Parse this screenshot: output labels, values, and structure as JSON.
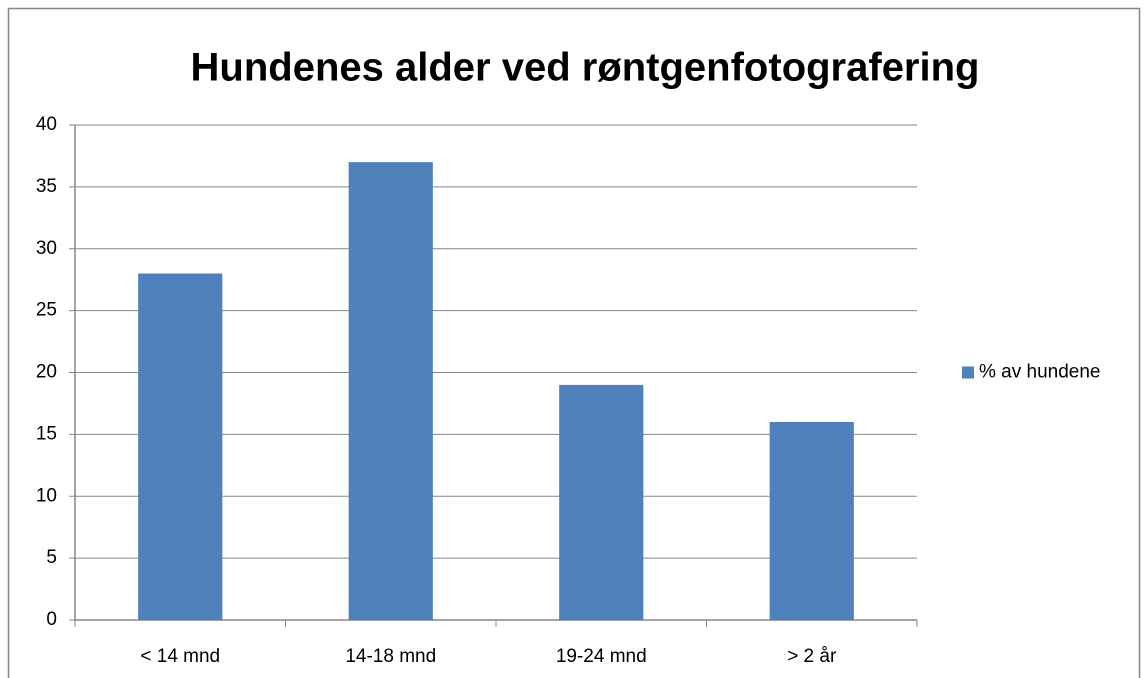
{
  "chart_data": {
    "type": "bar",
    "title": "Hundenes alder ved røntgenfotografering",
    "categories": [
      "< 14 mnd",
      "14-18 mnd",
      "19-24 mnd",
      "> 2 år"
    ],
    "series": [
      {
        "name": "% av hundene",
        "color": "#4f81bd",
        "values": [
          28,
          37,
          19,
          16
        ]
      }
    ],
    "ylim": [
      0,
      40
    ],
    "yticks": [
      0,
      5,
      10,
      15,
      20,
      25,
      30,
      35,
      40
    ],
    "grid": true,
    "legend": "right"
  }
}
